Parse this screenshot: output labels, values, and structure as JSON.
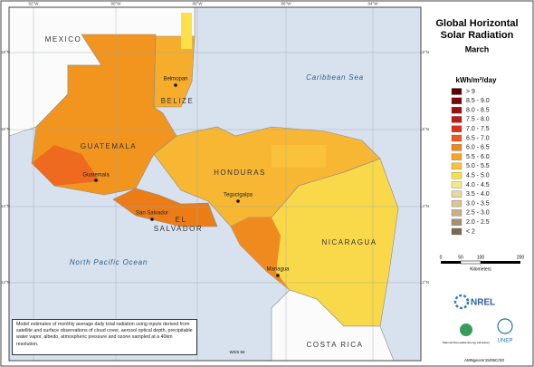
{
  "header": {
    "title_line1": "Global Horizontal",
    "title_line2": "Solar Radiation",
    "subtitle": "March"
  },
  "legend": {
    "title": "kWh/m²/day",
    "items": [
      {
        "label": "> 9",
        "color": "#5a0000"
      },
      {
        "label": "8.5 - 9.0",
        "color": "#7a0a0a"
      },
      {
        "label": "8.0 - 8.5",
        "color": "#9c1010"
      },
      {
        "label": "7.5 - 8.0",
        "color": "#c01a1a"
      },
      {
        "label": "7.0 - 7.5",
        "color": "#dd2e1e"
      },
      {
        "label": "6.5 - 7.0",
        "color": "#ee5a1e"
      },
      {
        "label": "6.0 - 6.5",
        "color": "#f08a1e"
      },
      {
        "label": "5.5 - 6.0",
        "color": "#f5a52a"
      },
      {
        "label": "5.0 - 5.5",
        "color": "#f9c23a"
      },
      {
        "label": "4.5 - 5.0",
        "color": "#fbe04a"
      },
      {
        "label": "4.0 - 4.5",
        "color": "#f3e88a"
      },
      {
        "label": "3.5 - 4.0",
        "color": "#e8d9a0"
      },
      {
        "label": "3.0 - 3.5",
        "color": "#d9c49a"
      },
      {
        "label": "2.5 - 3.0",
        "color": "#c9ae86"
      },
      {
        "label": "2.0 - 2.5",
        "color": "#a89070"
      },
      {
        "label": "< 2",
        "color": "#7a6a50"
      }
    ]
  },
  "map": {
    "countries": [
      "MEXICO",
      "BELIZE",
      "GUATEMALA",
      "HONDURAS",
      "EL",
      "SALVADOR",
      "NICARAGUA",
      "COSTA RICA"
    ],
    "cities": [
      "Belmopan",
      "Guatemala",
      "Tegucigalpa",
      "San Salvador",
      "Managua"
    ],
    "water": [
      "Caribbean Sea",
      "North Pacific Ocean"
    ],
    "lon_labels": [
      "92°W",
      "90°W",
      "88°W",
      "86°W",
      "84°W"
    ],
    "lat_labels": [
      "18°N",
      "16°N",
      "14°N",
      "12°N"
    ]
  },
  "scale": {
    "ticks": [
      0,
      50,
      100,
      200
    ],
    "unit": "Kilometers"
  },
  "note": "Model estimates of monthly average daily total radiation using inputs derived from satellite and surface observations of cloud cover, aerosol optical depth, precipitable water vapor, albedo, atmospheric pressure and ozone sampled at a 40km resolution.",
  "datum": "WGS 84",
  "logos": {
    "nrel": "NREL",
    "nrel_name": "National Renewable Energy Laboratory",
    "unep": "UNEP"
  },
  "credit": "AMNgeomr15/05C/S0"
}
